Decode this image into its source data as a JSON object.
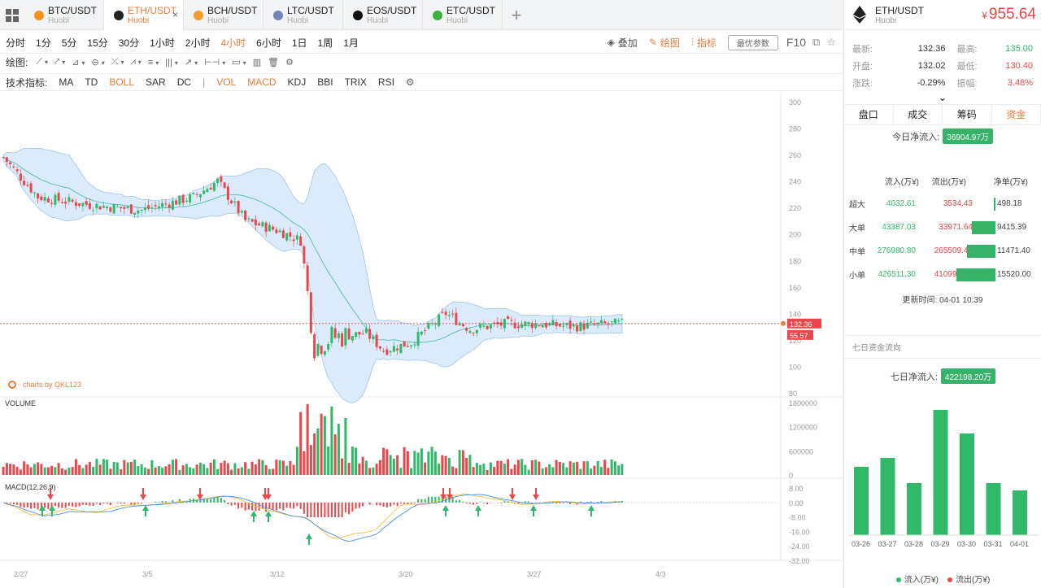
{
  "tabs": [
    {
      "pair": "BTC/USDT",
      "exchange": "Huobi",
      "color": "#f7931a",
      "active": false
    },
    {
      "pair": "ETH/USDT",
      "exchange": "Huobi",
      "color": "#222222",
      "active": true
    },
    {
      "pair": "BCH/USDT",
      "exchange": "Huobi",
      "color": "#f39a2b",
      "active": false
    },
    {
      "pair": "LTC/USDT",
      "exchange": "Huobi",
      "color": "#6f84b8",
      "active": false
    },
    {
      "pair": "EOS/USDT",
      "exchange": "Huobi",
      "color": "#111111",
      "active": false
    },
    {
      "pair": "ETC/USDT",
      "exchange": "Huobi",
      "color": "#3ab03e",
      "active": false
    }
  ],
  "tab_close": "×",
  "add_tab": "+",
  "periods": [
    "分时",
    "1分",
    "5分",
    "15分",
    "30分",
    "1小时",
    "2小时",
    "4小时",
    "6小时",
    "1日",
    "1周",
    "1月"
  ],
  "active_period": "4小时",
  "toolbar_right": {
    "overlay": "叠加",
    "draw": "绘图",
    "indicator": "指标",
    "best_params": "最优参数",
    "f10": "F10"
  },
  "draw_label": "绘图:",
  "tech_label": "技术指标:",
  "indicators": [
    {
      "name": "MA",
      "active": false
    },
    {
      "name": "TD",
      "active": false
    },
    {
      "name": "BOLL",
      "active": true
    },
    {
      "name": "SAR",
      "active": false
    },
    {
      "name": "DC",
      "active": false
    },
    {
      "name": "|",
      "active": false,
      "sep": true
    },
    {
      "name": "VOL",
      "active": true
    },
    {
      "name": "MACD",
      "active": true
    },
    {
      "name": "KDJ",
      "active": false
    },
    {
      "name": "BBI",
      "active": false
    },
    {
      "name": "TRIX",
      "active": false
    },
    {
      "name": "RSI",
      "active": false
    }
  ],
  "chart_data": {
    "type": "candlestick",
    "watermark": "charts by QKL123",
    "y_ticks": [
      300,
      280,
      260,
      240,
      220,
      200,
      180,
      160,
      140,
      120,
      100,
      80
    ],
    "ylim": [
      80,
      300
    ],
    "x_labels": [
      "2/27",
      "3/5",
      "3/12",
      "3/20",
      "3/27",
      "4/3"
    ],
    "last_price": "132.36",
    "secondary_label": "55.57",
    "volume_label": "VOLUME",
    "volume_ticks": [
      "1800000",
      "1200000",
      "600000",
      "0"
    ],
    "macd_label": "MACD(12,26,9)",
    "macd_ticks": [
      "8.00",
      "0.00",
      "-8.00",
      "-16.00",
      "-24.00",
      "-32.00"
    ]
  },
  "ticker": {
    "pair": "ETH/USDT",
    "exchange": "Huobi",
    "price_symbol": "¥",
    "price": "955.64",
    "latest_label": "最新:",
    "latest": "132.36",
    "high_label": "最高:",
    "high": "135.00",
    "open_label": "开盘:",
    "open": "132.02",
    "low_label": "最低:",
    "low": "130.40",
    "change_label": "涨跌:",
    "change": "-0.29%",
    "amp_label": "振幅:",
    "amp": "3.48%",
    "chevron": "⌄"
  },
  "right_tabs": [
    "盘口",
    "成交",
    "筹码",
    "资金"
  ],
  "active_right_tab": "资金",
  "today_flow_label": "今日净流入:",
  "today_flow": "36904.97万",
  "flow_headers": {
    "in": "流入(万¥)",
    "out": "流出(万¥)",
    "net": "净单(万¥)"
  },
  "flow_rows": [
    {
      "kind": "超大",
      "in": "4032.61",
      "out": "3534.43",
      "net": "498.18",
      "net_value": 498.18
    },
    {
      "kind": "大单",
      "in": "43387.03",
      "out": "33971.64",
      "net": "9415.39",
      "net_value": 9415.39
    },
    {
      "kind": "中单",
      "in": "276980.80",
      "out": "265509.40",
      "net": "11471.40",
      "net_value": 11471.4
    },
    {
      "kind": "小单",
      "in": "426511.30",
      "out": "410991.30",
      "net": "15520.00",
      "net_value": 15520.0
    }
  ],
  "update_time_label": "更新时间:",
  "update_time": "04-01 10:39",
  "seven_day_title": "七日资金流向",
  "seven_day_label": "七日净流入:",
  "seven_day_value": "422198.20万",
  "seven_day_chart": {
    "type": "bar",
    "categories": [
      "03-26",
      "03-27",
      "03-28",
      "03-29",
      "03-30",
      "03-31",
      "04-01"
    ],
    "values": [
      84,
      95,
      64,
      154,
      125,
      64,
      55
    ],
    "legend_in": "流入(万¥)",
    "legend_out": "流出(万¥)",
    "in_color": "#2fb968",
    "out_color": "#e8474b"
  }
}
